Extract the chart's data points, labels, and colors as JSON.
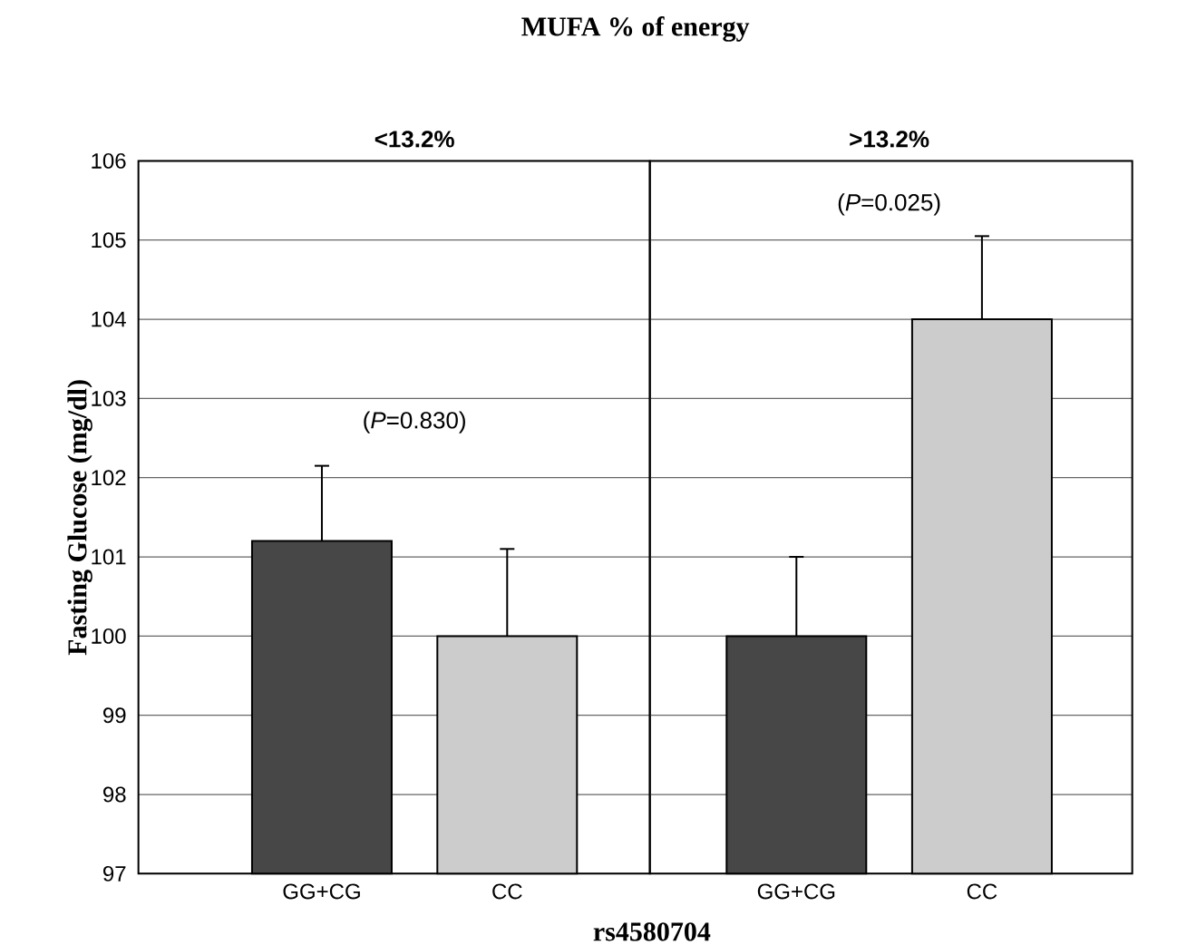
{
  "chart_data": [
    {
      "type": "bar",
      "title": "MUFA % of energy",
      "subtitle": "<13.2%",
      "xlabel": "rs4580704",
      "ylabel": "Fasting Glucose (mg/dl)",
      "categories": [
        "GG+CG",
        "CC"
      ],
      "values": [
        101.2,
        100
      ],
      "colors": [
        "#474747",
        "#cccccc"
      ],
      "errors": [
        [
          101.2,
          102.15
        ],
        [
          100,
          101.1
        ]
      ],
      "ylim": [
        97,
        106
      ],
      "yticks": [
        97,
        98,
        99,
        100,
        101,
        102,
        103,
        104,
        105,
        106
      ],
      "grid": "y",
      "annotations": [
        "(*P*=0.830)"
      ]
    },
    {
      "type": "bar",
      "subtitle": ">13.2%",
      "categories": [
        "GG+CG",
        "CC"
      ],
      "values": [
        100,
        104
      ],
      "colors": [
        "#474747",
        "#cccccc"
      ],
      "errors": [
        [
          100,
          101.0
        ],
        [
          104,
          105.05
        ]
      ],
      "ylim": [
        97,
        106
      ],
      "yticks": [
        97,
        98,
        99,
        100,
        101,
        102,
        103,
        104,
        105,
        106
      ],
      "grid": "y",
      "tick_labels": "x",
      "annotations": [
        "(*P*=0.025)"
      ]
    }
  ]
}
